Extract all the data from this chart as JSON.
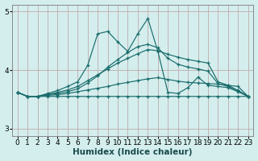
{
  "xlabel": "Humidex (Indice chaleur)",
  "bg_color": "#d4eeee",
  "grid_color": "#c0aaaa",
  "line_color": "#1a6b6b",
  "xlim": [
    -0.5,
    23.5
  ],
  "ylim": [
    2.88,
    5.12
  ],
  "yticks": [
    3,
    4,
    5
  ],
  "xtick_labels": [
    "0",
    "1",
    "2",
    "3",
    "4",
    "5",
    "6",
    "7",
    "8",
    "9",
    "10",
    "11",
    "12",
    "13",
    "14",
    "15",
    "16",
    "17",
    "18",
    "19",
    "20",
    "21",
    "22",
    "23"
  ],
  "series": [
    [
      3.62,
      3.55,
      3.55,
      3.55,
      3.55,
      3.55,
      3.55,
      3.55,
      3.55,
      3.55,
      3.55,
      3.55,
      3.55,
      3.55,
      3.55,
      3.55,
      3.55,
      3.55,
      3.55,
      3.55,
      3.55,
      3.55,
      3.55,
      3.55
    ],
    [
      3.62,
      3.55,
      3.55,
      3.57,
      3.58,
      3.6,
      3.63,
      3.66,
      3.69,
      3.72,
      3.76,
      3.79,
      3.82,
      3.85,
      3.87,
      3.84,
      3.81,
      3.79,
      3.78,
      3.77,
      3.76,
      3.74,
      3.72,
      3.55
    ],
    [
      3.62,
      3.55,
      3.55,
      3.58,
      3.62,
      3.66,
      3.72,
      3.82,
      3.92,
      4.02,
      4.12,
      4.2,
      4.28,
      4.35,
      4.33,
      4.27,
      4.22,
      4.18,
      4.15,
      4.12,
      3.8,
      3.74,
      3.65,
      3.55
    ],
    [
      3.62,
      3.55,
      3.55,
      3.6,
      3.65,
      3.72,
      3.8,
      4.08,
      4.62,
      4.66,
      4.48,
      4.32,
      4.62,
      4.88,
      4.32,
      3.62,
      3.6,
      3.7,
      3.88,
      3.74,
      3.72,
      3.7,
      3.63,
      3.55
    ],
    [
      3.62,
      3.55,
      3.55,
      3.58,
      3.6,
      3.63,
      3.68,
      3.78,
      3.9,
      4.05,
      4.18,
      4.3,
      4.4,
      4.44,
      4.38,
      4.2,
      4.1,
      4.05,
      4.02,
      3.98,
      3.77,
      3.72,
      3.65,
      3.55
    ]
  ]
}
